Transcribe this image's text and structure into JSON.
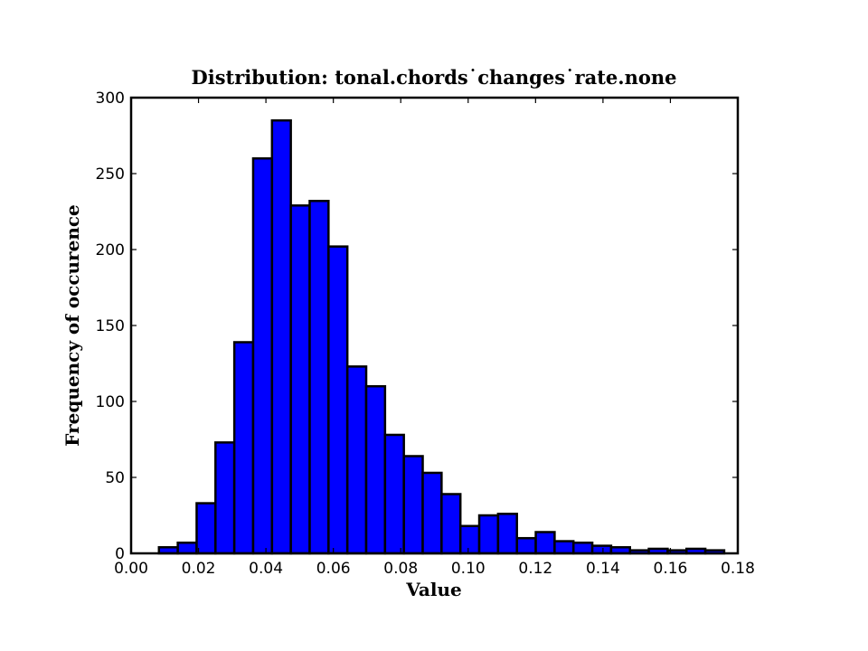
{
  "chart_data": {
    "type": "bar",
    "title": "Distribution: tonal.chords˙changes˙rate.none",
    "xlabel": "Value",
    "ylabel": "Frequency of occurence",
    "xlim": [
      0.0,
      0.18
    ],
    "ylim": [
      0,
      300
    ],
    "grid": false,
    "legend": "none",
    "bar_color": "#0000ff",
    "edge_color": "#000000",
    "bin_width": 0.00559,
    "bin_starts": [
      0.00826,
      0.01385,
      0.01944,
      0.02503,
      0.03062,
      0.03621,
      0.0418,
      0.04739,
      0.05298,
      0.05857,
      0.06416,
      0.06975,
      0.07534,
      0.08093,
      0.08652,
      0.09211,
      0.0977,
      0.10329,
      0.10888,
      0.11447,
      0.12006,
      0.12565,
      0.13124,
      0.13683,
      0.14242,
      0.14801,
      0.1536,
      0.15919,
      0.16478,
      0.17037
    ],
    "values": [
      4,
      7,
      33,
      73,
      139,
      260,
      285,
      229,
      232,
      202,
      123,
      110,
      78,
      64,
      53,
      39,
      18,
      25,
      26,
      10,
      14,
      8,
      7,
      5,
      4,
      2,
      3,
      2,
      3,
      2
    ],
    "x_ticks": [
      "0.00",
      "0.02",
      "0.04",
      "0.06",
      "0.08",
      "0.10",
      "0.12",
      "0.14",
      "0.16",
      "0.18"
    ],
    "y_ticks": [
      "0",
      "50",
      "100",
      "150",
      "200",
      "250",
      "300"
    ]
  }
}
